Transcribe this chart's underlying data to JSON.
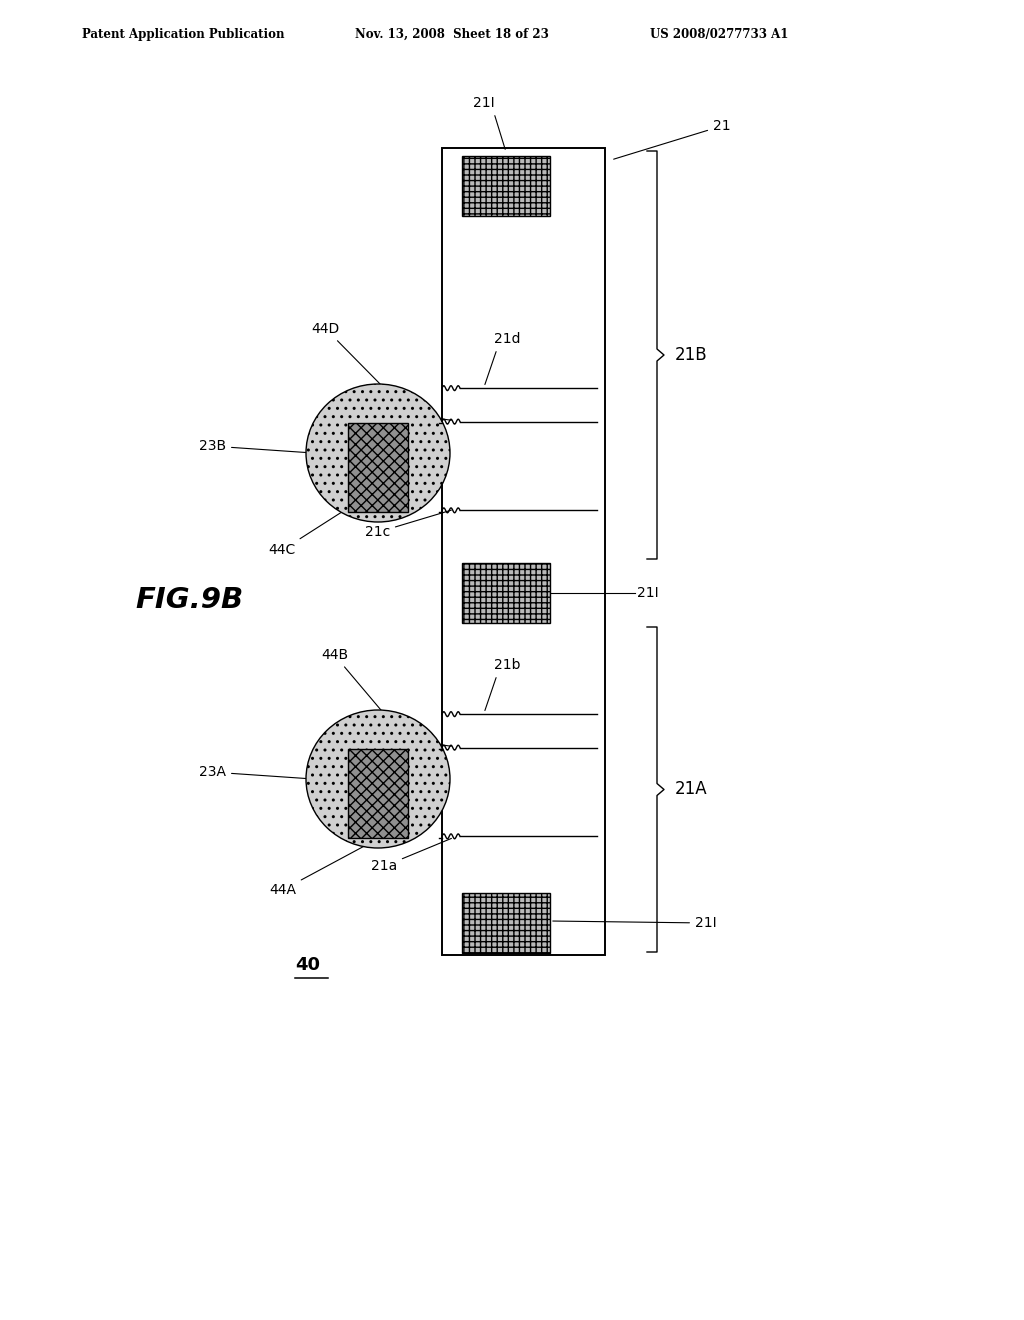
{
  "header_left": "Patent Application Publication",
  "header_mid": "Nov. 13, 2008  Sheet 18 of 23",
  "header_right": "US 2008/0277733 A1",
  "fig_label": "FIG.9B",
  "device_label": "40",
  "bg": "#ffffff",
  "lc": "#000000",
  "pad_color": "#b8b8b8",
  "bump_outer_color": "#d0d0d0",
  "bump_inner_color": "#909090"
}
